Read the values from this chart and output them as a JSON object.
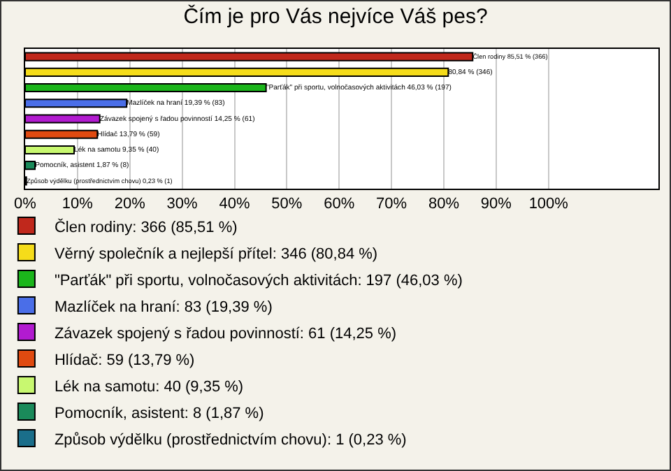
{
  "chart_data": {
    "type": "bar",
    "orientation": "horizontal",
    "title": "Čím je pro Vás nejvíce Váš pes?",
    "categories": [
      null,
      null,
      null,
      null,
      null,
      null,
      null,
      null,
      null
    ],
    "series": [
      {
        "name": "Člen rodiny: 366 (85,51 %)",
        "color": "#c0281c",
        "values": [
          85.51,
          null,
          null,
          null,
          null,
          null,
          null,
          null,
          null
        ],
        "value_labels": [
          "Člen rodiny 85,51 % (366)",
          null,
          null,
          null,
          null,
          null,
          null,
          null,
          null
        ]
      },
      {
        "name": "Věrný společník a nejlepší přítel: 346 (80,84 %)",
        "color": "#f5dc1a",
        "values": [
          null,
          80.84,
          null,
          null,
          null,
          null,
          null,
          null,
          null
        ],
        "value_labels": [
          null,
          "80,84 % (346)",
          null,
          null,
          null,
          null,
          null,
          null,
          null
        ]
      },
      {
        "name": "\"Parťák\" při sportu, volnočasových aktivitách: 197 (46,03 %)",
        "color": "#1bb51b",
        "values": [
          null,
          null,
          46.03,
          null,
          null,
          null,
          null,
          null,
          null
        ],
        "value_labels": [
          null,
          null,
          "\"Parťák\" při sportu, volnočasových aktivitách 46,03 % (197)",
          null,
          null,
          null,
          null,
          null,
          null
        ]
      },
      {
        "name": "Mazlíček na hraní: 83 (19,39 %)",
        "color": "#4a6ee8",
        "values": [
          null,
          null,
          null,
          19.39,
          null,
          null,
          null,
          null,
          null
        ],
        "value_labels": [
          null,
          null,
          null,
          "Mazlíček na hraní 19,39 % (83)",
          null,
          null,
          null,
          null,
          null
        ]
      },
      {
        "name": "Závazek spojený s řadou povinností: 61 (14,25 %)",
        "color": "#b21bd0",
        "values": [
          null,
          null,
          null,
          null,
          14.25,
          null,
          null,
          null,
          null
        ],
        "value_labels": [
          null,
          null,
          null,
          null,
          "Závazek spojený s řadou povinností 14,25 % (61)",
          null,
          null,
          null,
          null
        ]
      },
      {
        "name": "Hlídač: 59 (13,79 %)",
        "color": "#e04a10",
        "values": [
          null,
          null,
          null,
          null,
          null,
          13.79,
          null,
          null,
          null
        ],
        "value_labels": [
          null,
          null,
          null,
          null,
          null,
          "Hlídač 13,79 % (59)",
          null,
          null,
          null
        ]
      },
      {
        "name": "Lék na samotu: 40 (9,35 %)",
        "color": "#c8f870",
        "values": [
          null,
          null,
          null,
          null,
          null,
          null,
          9.35,
          null,
          null
        ],
        "value_labels": [
          null,
          null,
          null,
          null,
          null,
          null,
          "Lék na samotu 9,35 % (40)",
          null,
          null
        ]
      },
      {
        "name": "Pomocník, asistent: 8 (1,87 %)",
        "color": "#1a8a5a",
        "values": [
          null,
          null,
          null,
          null,
          null,
          null,
          null,
          1.87,
          null
        ],
        "value_labels": [
          null,
          null,
          null,
          null,
          null,
          null,
          null,
          "Pomocník, asistent 1,87 % (8)",
          null
        ]
      },
      {
        "name": "Způsob výdělku (prostřednictvím chovu): 1 (0,23 %)",
        "color": "#1a6e8a",
        "values": [
          null,
          null,
          null,
          null,
          null,
          null,
          null,
          null,
          0.23
        ],
        "value_labels": [
          null,
          null,
          null,
          null,
          null,
          null,
          null,
          null,
          "Způsob výdělku (prostřednictvím chovu) 0,23 % (1)"
        ]
      }
    ],
    "xlim": [
      0,
      121
    ],
    "xticks": [
      {
        "value": 0,
        "label": "0%"
      },
      {
        "value": 10,
        "label": "10%"
      },
      {
        "value": 20,
        "label": "20%"
      },
      {
        "value": 30,
        "label": "30%"
      },
      {
        "value": 40,
        "label": "40%"
      },
      {
        "value": 50,
        "label": "50%"
      },
      {
        "value": 60,
        "label": "60%"
      },
      {
        "value": 70,
        "label": "70%"
      },
      {
        "value": 80,
        "label": "80%"
      },
      {
        "value": 90,
        "label": "90%"
      },
      {
        "value": 100,
        "label": "100%"
      }
    ],
    "grid": "x",
    "legend": "bottom",
    "tick_labels": "x"
  }
}
